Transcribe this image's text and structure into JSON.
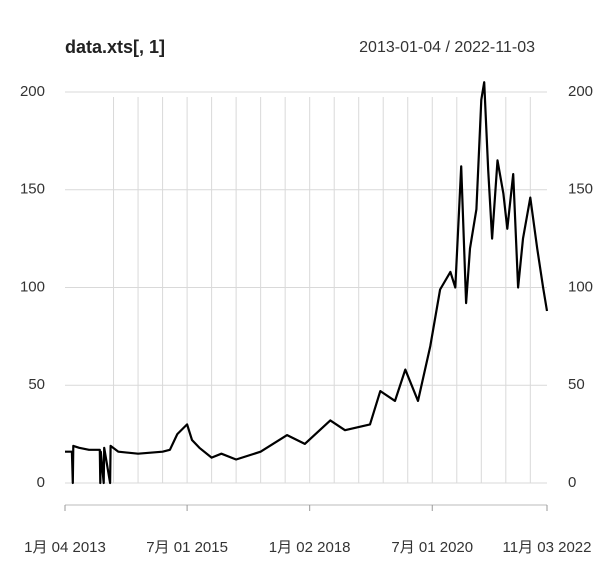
{
  "chart_data": {
    "type": "line",
    "title": "data.xts[, 1]",
    "subtitle": "2013-01-04 / 2022-11-03",
    "color": "#000000",
    "x": [
      2013.01,
      2013.15,
      2013.17,
      2013.18,
      2013.3,
      2013.5,
      2013.72,
      2013.73,
      2013.74,
      2013.8,
      2013.81,
      2013.93,
      2013.94,
      2014.1,
      2014.5,
      2015.0,
      2015.15,
      2015.3,
      2015.5,
      2015.6,
      2015.75,
      2016.0,
      2016.2,
      2016.5,
      2017.0,
      2017.54,
      2017.9,
      2018.42,
      2018.72,
      2019.23,
      2019.44,
      2019.74,
      2019.95,
      2020.21,
      2020.46,
      2020.66,
      2020.87,
      2020.97,
      2021.09,
      2021.19,
      2021.27,
      2021.4,
      2021.5,
      2021.56,
      2021.64,
      2021.72,
      2021.83,
      2021.95,
      2022.03,
      2022.15,
      2022.25,
      2022.35,
      2022.5,
      2022.64,
      2022.76,
      2022.84
    ],
    "values": [
      16,
      16,
      0,
      19,
      18,
      17,
      17,
      0,
      16,
      0,
      18,
      0,
      19,
      16,
      15,
      16,
      17,
      25,
      30,
      22,
      18,
      13,
      15,
      12,
      16,
      24.5,
      20,
      32,
      27,
      30,
      47,
      42,
      58,
      42,
      70,
      99,
      108,
      100,
      162,
      92,
      120,
      140,
      196,
      205,
      160,
      125,
      165,
      148,
      130,
      158,
      100,
      125,
      146,
      120,
      100,
      88
    ],
    "xlim": [
      2013.01,
      2022.84
    ],
    "xticks": [
      {
        "value": 2013.01,
        "label": "1月 04 2013"
      },
      {
        "value": 2015.5,
        "label": "7月 01 2015"
      },
      {
        "value": 2018.0,
        "label": "1月 02 2018"
      },
      {
        "value": 2020.5,
        "label": "7月 01 2020"
      },
      {
        "value": 2022.84,
        "label": "11月 03 2022"
      }
    ],
    "x_minor_ticks": [
      2014.0,
      2014.5,
      2015.0,
      2015.5,
      2016.0,
      2016.5,
      2017.0,
      2017.5,
      2018.0,
      2018.5,
      2019.0,
      2019.5,
      2020.0,
      2020.5,
      2021.0,
      2021.5,
      2022.0,
      2022.5
    ],
    "ylim": [
      0,
      200
    ],
    "yticks": [
      0,
      50,
      100,
      150,
      200
    ],
    "grid": true
  }
}
